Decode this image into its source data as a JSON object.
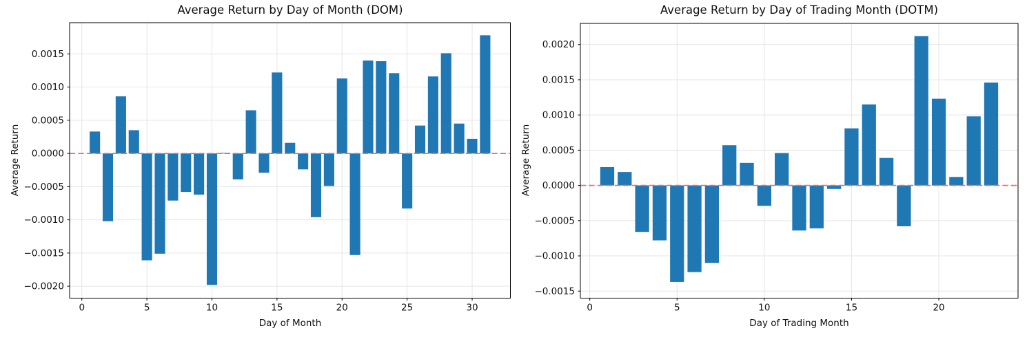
{
  "figure": {
    "background": "#ffffff"
  },
  "colors": {
    "bar": "#1f77b4",
    "zero_line": "#ee6b6b",
    "grid": "#e5e5e5",
    "spine": "#000000",
    "tick_text": "#111111"
  },
  "chart_data": [
    {
      "type": "bar",
      "title": "Average Return by Day of Month (DOM)",
      "xlabel": "Day of Month",
      "ylabel": "Average Return",
      "x": [
        1,
        2,
        3,
        4,
        5,
        6,
        7,
        8,
        9,
        10,
        11,
        12,
        13,
        14,
        15,
        16,
        17,
        18,
        19,
        20,
        21,
        22,
        23,
        24,
        25,
        26,
        27,
        28,
        29,
        30,
        31
      ],
      "values": [
        0.00033,
        -0.00102,
        0.00086,
        0.00035,
        -0.00161,
        -0.00151,
        -0.00071,
        -0.00058,
        -0.00062,
        -0.00198,
        1e-05,
        -0.00039,
        0.00065,
        -0.00029,
        0.00122,
        0.00016,
        -0.00024,
        -0.00096,
        -0.00049,
        0.00113,
        -0.00153,
        0.0014,
        0.00139,
        0.00121,
        -0.00083,
        0.00042,
        0.00116,
        0.00151,
        0.00045,
        0.00022,
        0.00178
      ],
      "xlim": [
        -0.94,
        32.94
      ],
      "ylim": [
        -0.00218,
        0.00197
      ],
      "xticks": [
        0,
        5,
        10,
        15,
        20,
        25,
        30
      ],
      "yticks": [
        0.0015,
        0.001,
        0.0005,
        0.0,
        -0.0005,
        -0.001,
        -0.0015,
        -0.002
      ],
      "grid": true,
      "legend": null,
      "zero_line": {
        "y": 0,
        "style": "dashed",
        "color": "red"
      }
    },
    {
      "type": "bar",
      "title": "Average Return by Day of Trading Month (DOTM)",
      "xlabel": "Day of Trading Month",
      "ylabel": "Average Return",
      "x": [
        1,
        2,
        3,
        4,
        5,
        6,
        7,
        8,
        9,
        10,
        11,
        12,
        13,
        14,
        15,
        16,
        17,
        18,
        19,
        20,
        21,
        22,
        23
      ],
      "values": [
        0.00026,
        0.00019,
        -0.00066,
        -0.00078,
        -0.00137,
        -0.00123,
        -0.0011,
        0.00057,
        0.00032,
        -0.00029,
        0.00046,
        -0.00064,
        -0.00061,
        -5e-05,
        0.00081,
        0.00115,
        0.00039,
        -0.00058,
        0.00212,
        0.00123,
        0.00012,
        0.00098,
        0.00146
      ],
      "xlim": [
        -0.54,
        24.54
      ],
      "ylim": [
        -0.0016,
        0.0023
      ],
      "xticks": [
        0,
        5,
        10,
        15,
        20
      ],
      "yticks": [
        0.002,
        0.0015,
        0.001,
        0.0005,
        0.0,
        -0.0005,
        -0.001,
        -0.0015
      ],
      "grid": true,
      "legend": null,
      "zero_line": {
        "y": 0,
        "style": "dashed",
        "color": "red"
      }
    }
  ]
}
